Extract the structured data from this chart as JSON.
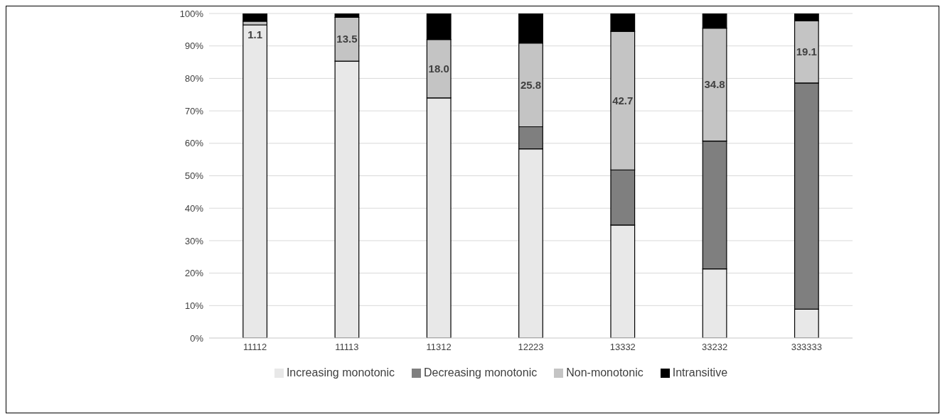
{
  "chart_data": {
    "type": "bar",
    "stacked": true,
    "categories": [
      "11112",
      "11113",
      "11312",
      "12223",
      "13332",
      "33232",
      "333333"
    ],
    "series": [
      {
        "name": "Increasing monotonic",
        "color": "#e8e8e8",
        "values": [
          96.5,
          85.3,
          74.0,
          58.3,
          34.8,
          21.3,
          8.9
        ]
      },
      {
        "name": "Decreasing monotonic",
        "color": "#7f7f7f",
        "values": [
          0,
          0,
          0,
          6.8,
          17.0,
          39.4,
          69.7
        ]
      },
      {
        "name": "Non-monotonic",
        "color": "#c4c4c4",
        "values": [
          1.1,
          13.5,
          18.0,
          25.8,
          42.7,
          34.8,
          19.1
        ],
        "value_labels": [
          "1.1",
          "13.5",
          "18.0",
          "25.8",
          "42.7",
          "34.8",
          "19.1"
        ]
      },
      {
        "name": "Intransitive",
        "color": "#000000",
        "values": [
          2.4,
          1.2,
          8.0,
          9.1,
          5.5,
          4.5,
          2.3
        ]
      }
    ],
    "ylim": [
      0,
      100
    ],
    "yticks": [
      {
        "value": 0,
        "label": "0%"
      },
      {
        "value": 10,
        "label": "10%"
      },
      {
        "value": 20,
        "label": "20%"
      },
      {
        "value": 30,
        "label": "30%"
      },
      {
        "value": 40,
        "label": "40%"
      },
      {
        "value": 50,
        "label": "50%"
      },
      {
        "value": 60,
        "label": "60%"
      },
      {
        "value": 70,
        "label": "70%"
      },
      {
        "value": 80,
        "label": "80%"
      },
      {
        "value": 90,
        "label": "90%"
      },
      {
        "value": 100,
        "label": "100%"
      }
    ],
    "grid": "y",
    "legend": "bottom"
  }
}
